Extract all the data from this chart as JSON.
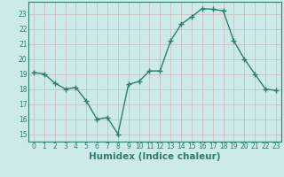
{
  "x": [
    0,
    1,
    2,
    3,
    4,
    5,
    6,
    7,
    8,
    9,
    10,
    11,
    12,
    13,
    14,
    15,
    16,
    17,
    18,
    19,
    20,
    21,
    22,
    23
  ],
  "y": [
    19.1,
    19.0,
    18.4,
    18.0,
    18.1,
    17.2,
    16.0,
    16.1,
    15.0,
    18.3,
    18.5,
    19.2,
    19.2,
    21.2,
    22.3,
    22.8,
    23.35,
    23.3,
    23.2,
    21.2,
    20.0,
    19.0,
    18.0,
    17.9
  ],
  "line_color": "#2e7d6e",
  "marker": "+",
  "marker_size": 4,
  "line_width": 1.0,
  "bg_color": "#cceaea",
  "grid_color": "#c8b8b8",
  "xlabel": "Humidex (Indice chaleur)",
  "xlim": [
    -0.5,
    23.5
  ],
  "ylim": [
    14.5,
    23.8
  ],
  "yticks": [
    15,
    16,
    17,
    18,
    19,
    20,
    21,
    22,
    23
  ],
  "xticks": [
    0,
    1,
    2,
    3,
    4,
    5,
    6,
    7,
    8,
    9,
    10,
    11,
    12,
    13,
    14,
    15,
    16,
    17,
    18,
    19,
    20,
    21,
    22,
    23
  ],
  "tick_fontsize": 5.5,
  "xlabel_fontsize": 7.5,
  "tick_color": "#2e7d6e",
  "axis_color": "#2e7d6e",
  "marker_color": "#2e7d6e"
}
